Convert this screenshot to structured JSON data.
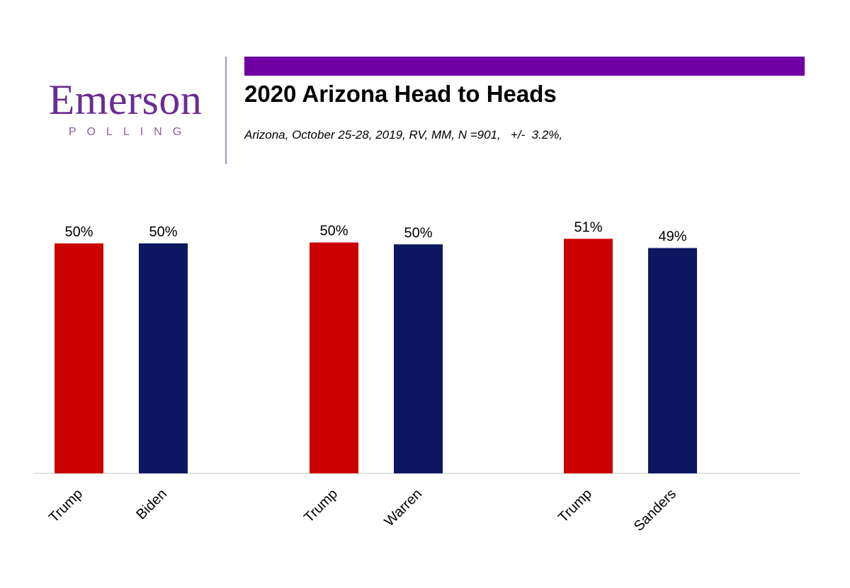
{
  "branding": {
    "logo_word": "Emerson",
    "logo_sub": "POLLING",
    "colors": {
      "logo": "#6a2c91",
      "band": "#6e00a3"
    }
  },
  "header": {
    "title": "2020 Arizona Head to Heads",
    "subtitle": "Arizona, October 25-28, 2019, RV, MM, N =901,   +/-  3.2%,"
  },
  "chart_data": {
    "type": "bar",
    "title": "2020 Arizona Head to Heads",
    "xlabel": "",
    "ylabel": "",
    "ylim": [
      0,
      52
    ],
    "grid": false,
    "legend": "none",
    "groups": [
      {
        "bars": [
          {
            "label": "Trump",
            "value": 50,
            "data_label": "50%",
            "color": "#cc0000"
          },
          {
            "label": "Biden",
            "value": 50,
            "data_label": "50%",
            "color": "#0c1760"
          }
        ]
      },
      {
        "bars": [
          {
            "label": "Trump",
            "value": 50.2,
            "data_label": "50%",
            "color": "#cc0000"
          },
          {
            "label": "Warren",
            "value": 49.8,
            "data_label": "50%",
            "color": "#0c1760"
          }
        ]
      },
      {
        "bars": [
          {
            "label": "Trump",
            "value": 51,
            "data_label": "51%",
            "color": "#cc0000"
          },
          {
            "label": "Sanders",
            "value": 49,
            "data_label": "49%",
            "color": "#0c1760"
          }
        ]
      }
    ]
  }
}
